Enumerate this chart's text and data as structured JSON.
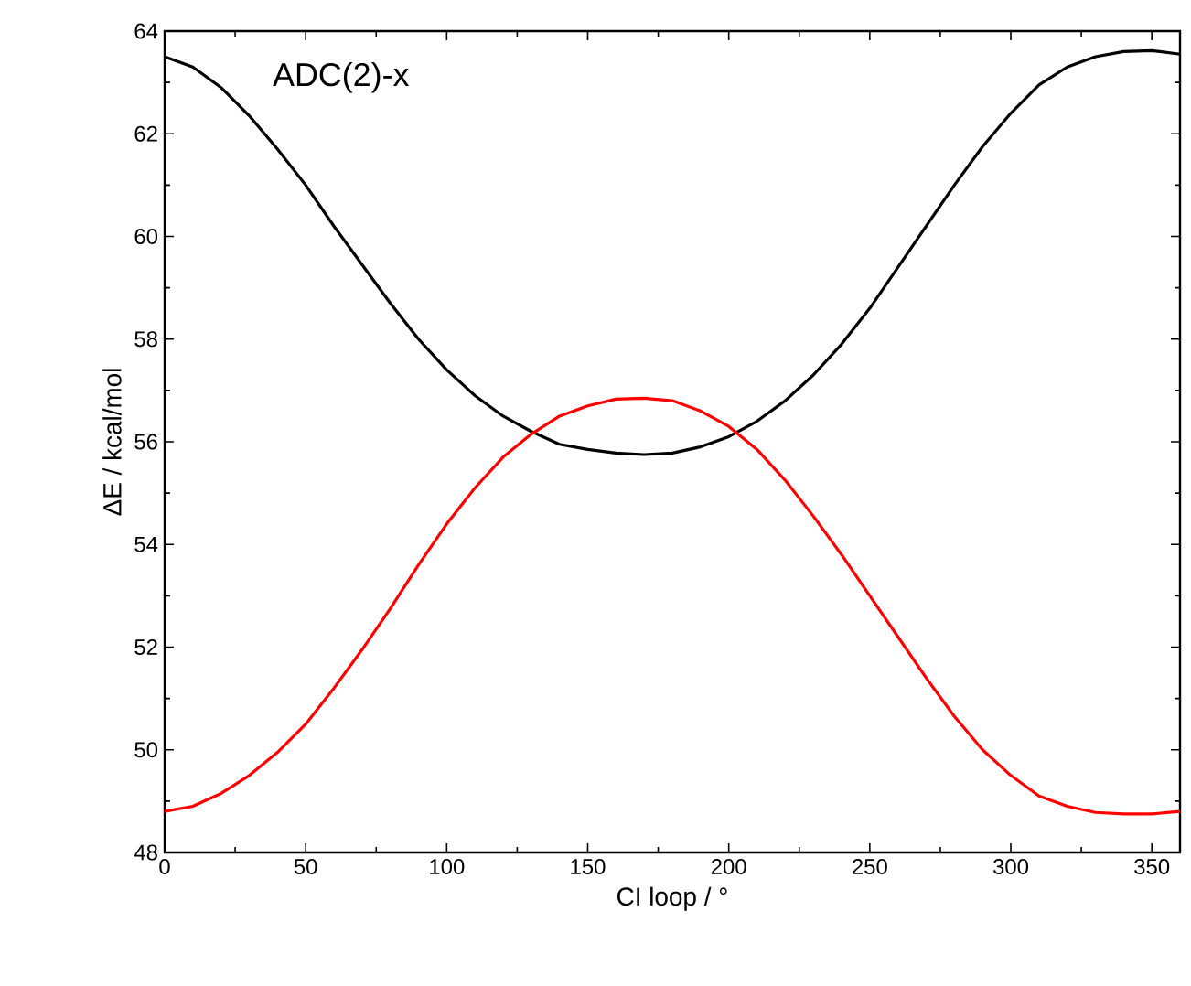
{
  "chart_data": {
    "type": "line",
    "xlabel": "CI loop / °",
    "ylabel": "ΔE / kcal/mol",
    "annotations": [
      "ADC(2)-x"
    ],
    "x": [
      0,
      10,
      20,
      30,
      40,
      50,
      60,
      70,
      80,
      90,
      100,
      110,
      120,
      130,
      140,
      150,
      160,
      170,
      180,
      190,
      200,
      210,
      220,
      230,
      240,
      250,
      260,
      270,
      280,
      290,
      300,
      310,
      320,
      330,
      340,
      350,
      360
    ],
    "series": [
      {
        "color": "#000000",
        "values": [
          63.5,
          63.3,
          62.9,
          62.35,
          61.7,
          61.0,
          60.2,
          59.45,
          58.7,
          58.0,
          57.4,
          56.9,
          56.5,
          56.2,
          55.95,
          55.85,
          55.78,
          55.75,
          55.78,
          55.9,
          56.1,
          56.4,
          56.8,
          57.3,
          57.9,
          58.6,
          59.4,
          60.2,
          61.0,
          61.75,
          62.4,
          62.95,
          63.3,
          63.5,
          63.6,
          63.62,
          63.55
        ]
      },
      {
        "color": "#ff0000",
        "values": [
          48.8,
          48.9,
          49.15,
          49.5,
          49.95,
          50.5,
          51.2,
          51.95,
          52.75,
          53.6,
          54.4,
          55.1,
          55.7,
          56.15,
          56.5,
          56.7,
          56.83,
          56.85,
          56.8,
          56.6,
          56.3,
          55.85,
          55.25,
          54.55,
          53.8,
          53.0,
          52.2,
          51.4,
          50.65,
          50.0,
          49.5,
          49.1,
          48.9,
          48.78,
          48.75,
          48.75,
          48.8
        ]
      }
    ],
    "xlim": [
      0,
      360
    ],
    "xticks": [
      0,
      50,
      100,
      150,
      200,
      250,
      300,
      350
    ],
    "ylim": [
      48,
      64
    ],
    "yticks": [
      48,
      50,
      52,
      54,
      56,
      58,
      60,
      62,
      64
    ],
    "grid": false,
    "marker": "none",
    "line_style": "solid"
  }
}
